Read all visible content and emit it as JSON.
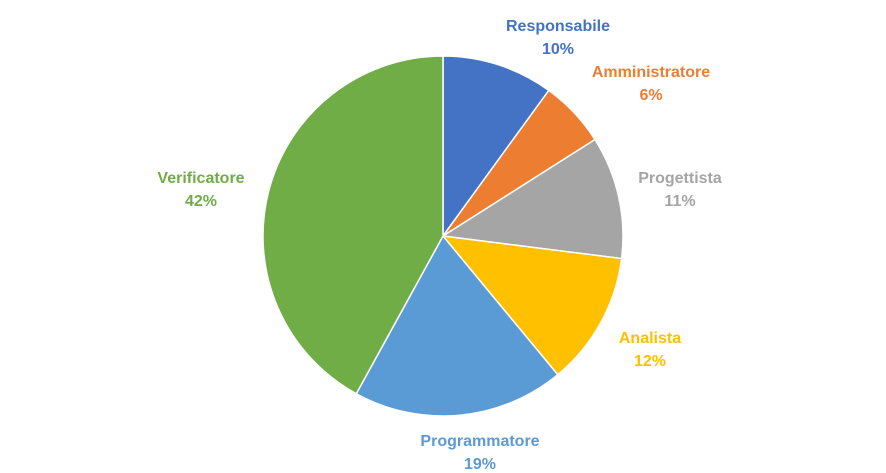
{
  "chart_data": {
    "type": "pie",
    "title": "",
    "slices": [
      {
        "label": "Responsabile",
        "value": 10,
        "value_label": "10%",
        "color": "#4472C4"
      },
      {
        "label": "Amministratore",
        "value": 6,
        "value_label": "6%",
        "color": "#ED7D31"
      },
      {
        "label": "Progettista",
        "value": 11,
        "value_label": "11%",
        "color": "#A5A5A5"
      },
      {
        "label": "Analista",
        "value": 12,
        "value_label": "12%",
        "color": "#FFC000"
      },
      {
        "label": "Programmatore",
        "value": 19,
        "value_label": "19%",
        "color": "#5B9BD5"
      },
      {
        "label": "Verificatore",
        "value": 42,
        "value_label": "42%",
        "color": "#70AD47"
      }
    ],
    "start_angle_deg": 0,
    "direction": "clockwise",
    "legend": "none",
    "data_labels": "outside"
  }
}
